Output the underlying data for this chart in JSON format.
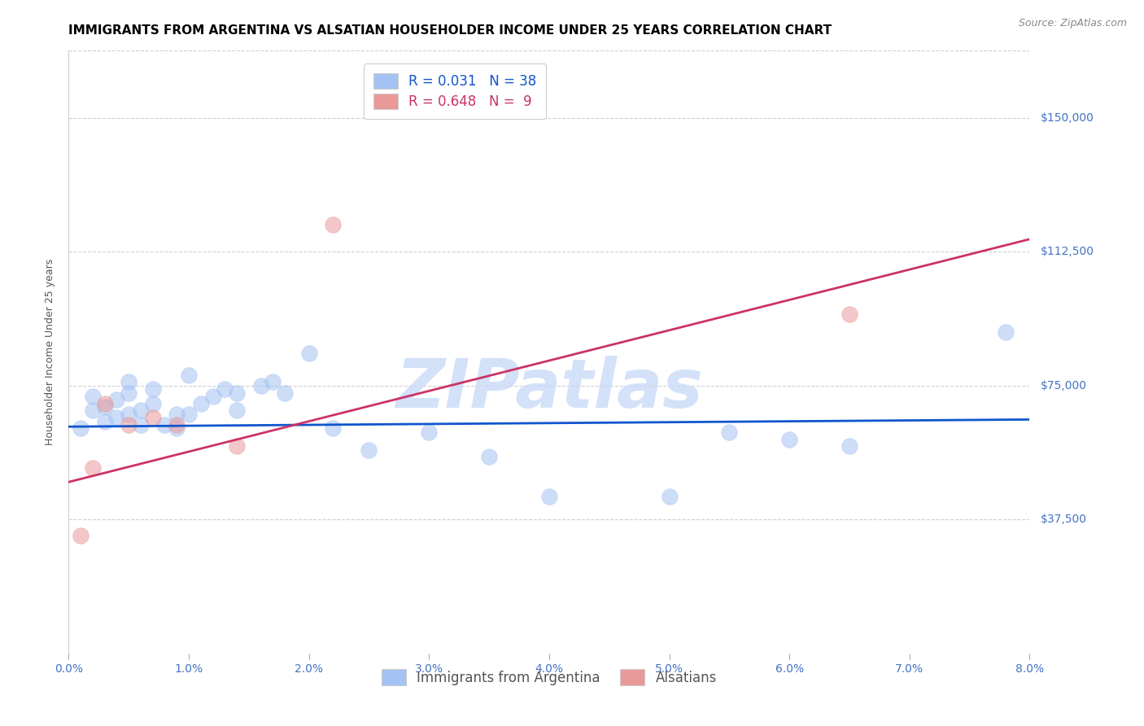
{
  "title": "IMMIGRANTS FROM ARGENTINA VS ALSATIAN HOUSEHOLDER INCOME UNDER 25 YEARS CORRELATION CHART",
  "source": "Source: ZipAtlas.com",
  "ylabel": "Householder Income Under 25 years",
  "xlabel_ticks": [
    "0.0%",
    "1.0%",
    "2.0%",
    "3.0%",
    "4.0%",
    "5.0%",
    "6.0%",
    "7.0%",
    "8.0%"
  ],
  "ytick_labels": [
    "$37,500",
    "$75,000",
    "$112,500",
    "$150,000"
  ],
  "ytick_values": [
    37500,
    75000,
    112500,
    150000
  ],
  "xmin": 0.0,
  "xmax": 0.08,
  "ymin": 0,
  "ymax": 168750,
  "blue_color": "#a4c2f4",
  "pink_color": "#ea9999",
  "blue_line_color": "#1155cc",
  "pink_line_color": "#cc3366",
  "watermark": "ZIPatlas",
  "watermark_color": "#c9daf8",
  "blue_scatter_x": [
    0.001,
    0.002,
    0.002,
    0.003,
    0.003,
    0.004,
    0.004,
    0.005,
    0.005,
    0.005,
    0.006,
    0.006,
    0.007,
    0.007,
    0.008,
    0.009,
    0.009,
    0.01,
    0.01,
    0.011,
    0.012,
    0.013,
    0.014,
    0.014,
    0.016,
    0.017,
    0.018,
    0.02,
    0.022,
    0.025,
    0.03,
    0.035,
    0.04,
    0.05,
    0.055,
    0.06,
    0.065,
    0.078
  ],
  "blue_scatter_y": [
    63000,
    68000,
    72000,
    65000,
    69000,
    66000,
    71000,
    67000,
    73000,
    76000,
    64000,
    68000,
    70000,
    74000,
    64000,
    67000,
    63000,
    67000,
    78000,
    70000,
    72000,
    74000,
    73000,
    68000,
    75000,
    76000,
    73000,
    84000,
    63000,
    57000,
    62000,
    55000,
    44000,
    44000,
    62000,
    60000,
    58000,
    90000
  ],
  "pink_scatter_x": [
    0.001,
    0.002,
    0.003,
    0.005,
    0.007,
    0.009,
    0.014,
    0.022,
    0.065
  ],
  "pink_scatter_y": [
    33000,
    52000,
    70000,
    64000,
    66000,
    64000,
    58000,
    120000,
    95000
  ],
  "blue_trend_x": [
    0.0,
    0.08
  ],
  "blue_trend_y": [
    63500,
    65500
  ],
  "pink_trend_x": [
    0.0,
    0.08
  ],
  "pink_trend_y": [
    48000,
    116000
  ],
  "title_fontsize": 11,
  "source_fontsize": 9,
  "axis_label_fontsize": 9,
  "tick_fontsize": 10,
  "legend_fontsize": 12
}
